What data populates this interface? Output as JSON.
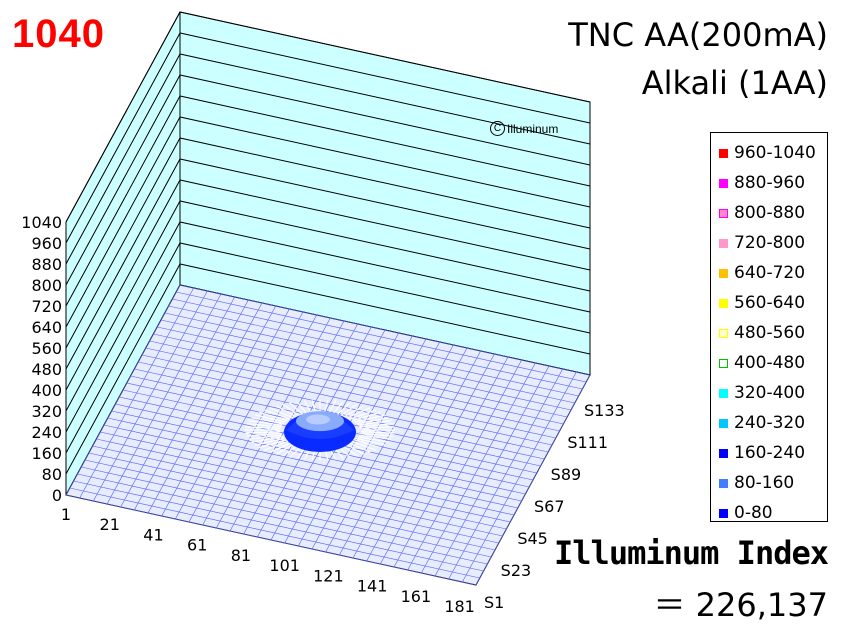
{
  "header": {
    "max_value": "1040",
    "title_line1": "TNC AA(200mA)",
    "title_line2": "Alkali (1AA)",
    "watermark": "Illuminum",
    "index_label": "Illuminum Index",
    "index_value": "＝ 226,137"
  },
  "legend": [
    {
      "label": "960-1040",
      "color": "#ff0000",
      "border": "#ff0000"
    },
    {
      "label": "880-960",
      "color": "#ff00ff",
      "border": "#ff00ff"
    },
    {
      "label": "800-880",
      "color": "#ff88cc",
      "border": "#ff00ff"
    },
    {
      "label": "720-800",
      "color": "#ff99cc",
      "border": "#ff99cc"
    },
    {
      "label": "640-720",
      "color": "#ffc000",
      "border": "#ffc000"
    },
    {
      "label": "560-640",
      "color": "#ffff00",
      "border": "#ffff00"
    },
    {
      "label": "480-560",
      "color": "#ffffcc",
      "border": "#ffff00"
    },
    {
      "label": "400-480",
      "color": "#ffffff",
      "border": "#00c000"
    },
    {
      "label": "320-400",
      "color": "#00ffff",
      "border": "#00ffff"
    },
    {
      "label": "240-320",
      "color": "#00c8ff",
      "border": "#00c8ff"
    },
    {
      "label": "160-240",
      "color": "#0000ff",
      "border": "#0000ff"
    },
    {
      "label": "80-160",
      "color": "#3f7fff",
      "border": "#3f7fff"
    },
    {
      "label": "0-80",
      "color": "#0000ff",
      "border": "#0000ff"
    }
  ],
  "chart_data": {
    "type": "surface",
    "z_ticks": [
      "0",
      "80",
      "160",
      "240",
      "320",
      "400",
      "480",
      "560",
      "640",
      "720",
      "800",
      "880",
      "960",
      "1040"
    ],
    "z_range": [
      0,
      1040
    ],
    "x_ticks": [
      "1",
      "21",
      "41",
      "61",
      "81",
      "101",
      "121",
      "141",
      "161",
      "181"
    ],
    "y_ticks": [
      "S1",
      "S23",
      "S45",
      "S67",
      "S89",
      "S111",
      "S133"
    ],
    "peak": {
      "x": 91,
      "y": "S67",
      "value": 200
    },
    "colors": {
      "back_wall": "#ccffff",
      "mesh": "#0000ff",
      "mesh_light": "#88aaff"
    }
  }
}
